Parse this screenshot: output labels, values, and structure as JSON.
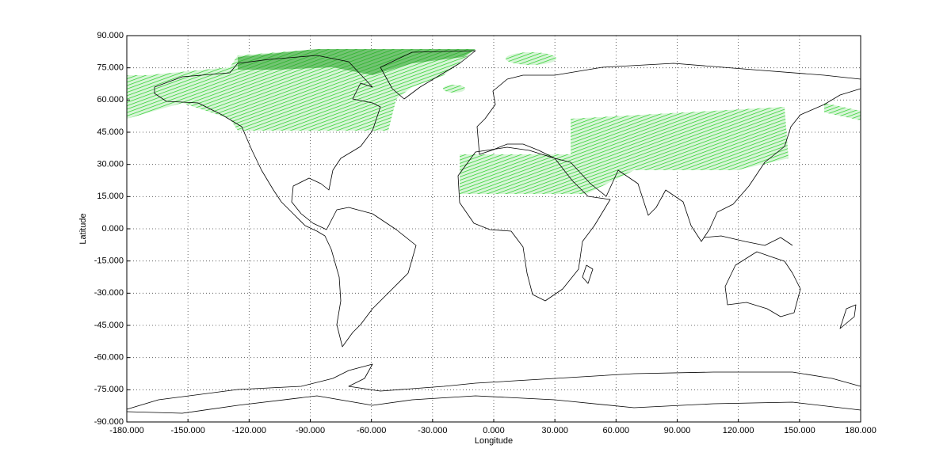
{
  "chart_data": {
    "type": "map",
    "xlabel": "Longitude",
    "ylabel": "Latitude",
    "xlim": [
      -180,
      180
    ],
    "ylim": [
      -90,
      90
    ],
    "xticks": [
      {
        "value": -180,
        "label": "-180.000"
      },
      {
        "value": -150,
        "label": "-150.000"
      },
      {
        "value": -120,
        "label": "-120.000"
      },
      {
        "value": -90,
        "label": "-90.000"
      },
      {
        "value": -60,
        "label": "-60.000"
      },
      {
        "value": -30,
        "label": "-30.000"
      },
      {
        "value": 0,
        "label": "0.000"
      },
      {
        "value": 30,
        "label": "30.000"
      },
      {
        "value": 60,
        "label": "60.000"
      },
      {
        "value": 90,
        "label": "90.000"
      },
      {
        "value": 120,
        "label": "120.000"
      },
      {
        "value": 150,
        "label": "150.000"
      },
      {
        "value": 180,
        "label": "180.000"
      }
    ],
    "yticks": [
      {
        "value": 90,
        "label": "90.000"
      },
      {
        "value": 75,
        "label": "75.000"
      },
      {
        "value": 60,
        "label": "60.000"
      },
      {
        "value": 45,
        "label": "45.000"
      },
      {
        "value": 30,
        "label": "30.000"
      },
      {
        "value": 15,
        "label": "15.000"
      },
      {
        "value": 0,
        "label": "0.000"
      },
      {
        "value": -15,
        "label": "-15.000"
      },
      {
        "value": -30,
        "label": "-30.000"
      },
      {
        "value": -45,
        "label": "-45.000"
      },
      {
        "value": -60,
        "label": "-60.000"
      },
      {
        "value": -75,
        "label": "-75.000"
      },
      {
        "value": -90,
        "label": "-90.000"
      }
    ],
    "grid": true
  }
}
